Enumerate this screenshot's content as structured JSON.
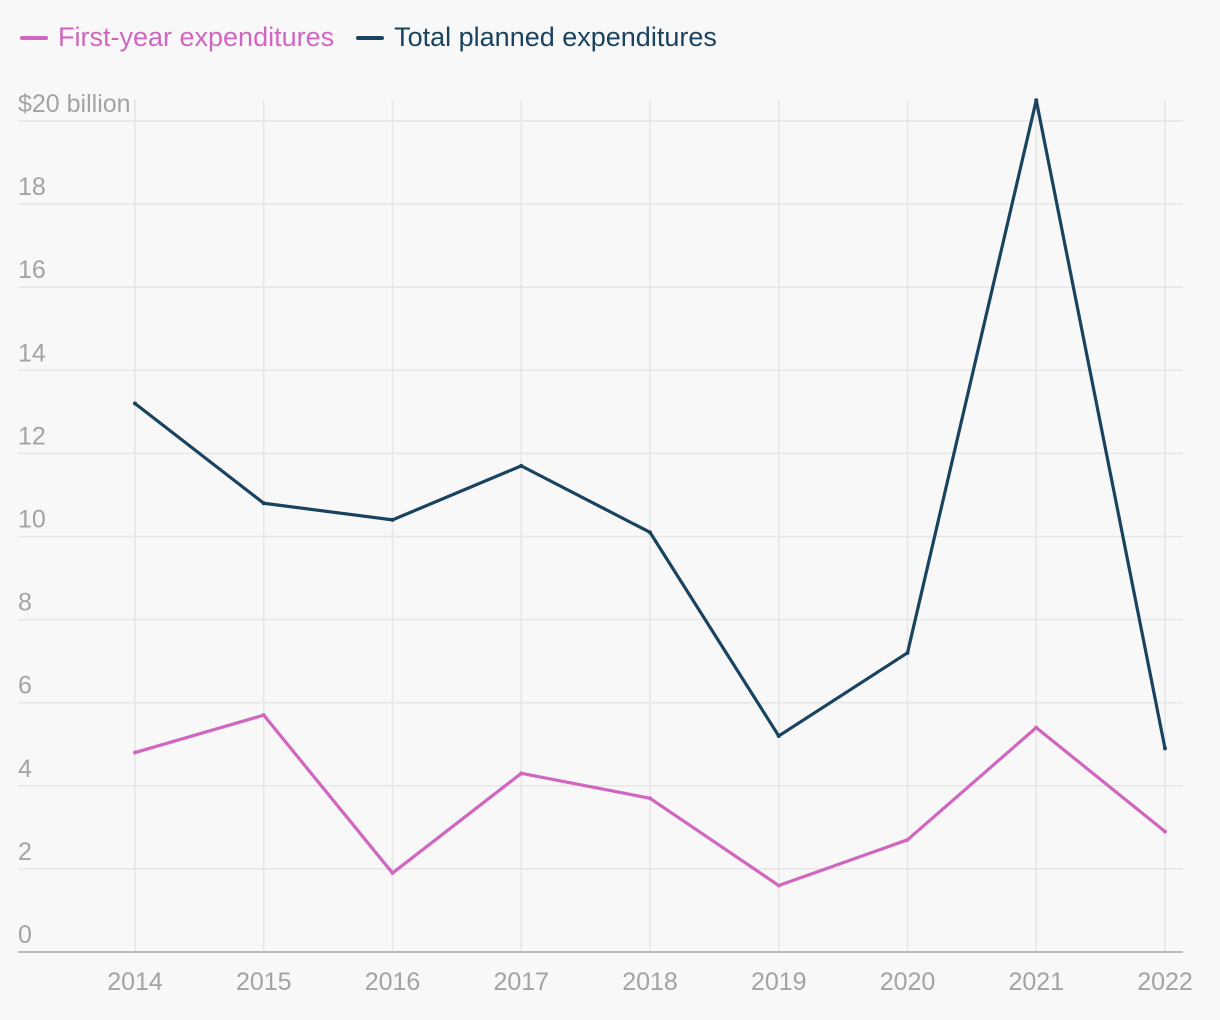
{
  "chart_data": {
    "type": "line",
    "title": "",
    "xlabel": "",
    "ylabel": "",
    "categories": [
      "2014",
      "2015",
      "2016",
      "2017",
      "2018",
      "2019",
      "2020",
      "2021",
      "2022"
    ],
    "series": [
      {
        "name": "First-year expenditures",
        "color": "#d166c0",
        "values": [
          4.8,
          5.7,
          1.9,
          4.3,
          3.7,
          1.6,
          2.7,
          5.4,
          2.9
        ]
      },
      {
        "name": "Total planned expenditures",
        "color": "#19435e",
        "values": [
          13.2,
          10.8,
          10.4,
          11.7,
          10.1,
          5.2,
          7.2,
          20.5,
          4.9
        ]
      }
    ],
    "ylim": [
      0,
      20
    ],
    "yticks": [
      0,
      2,
      4,
      6,
      8,
      10,
      12,
      14,
      16,
      18,
      20
    ],
    "ytick_labels": [
      "0",
      "2",
      "4",
      "6",
      "8",
      "10",
      "12",
      "14",
      "16",
      "18",
      "$20 billion"
    ],
    "grid": true,
    "legend_position": "top-left"
  }
}
